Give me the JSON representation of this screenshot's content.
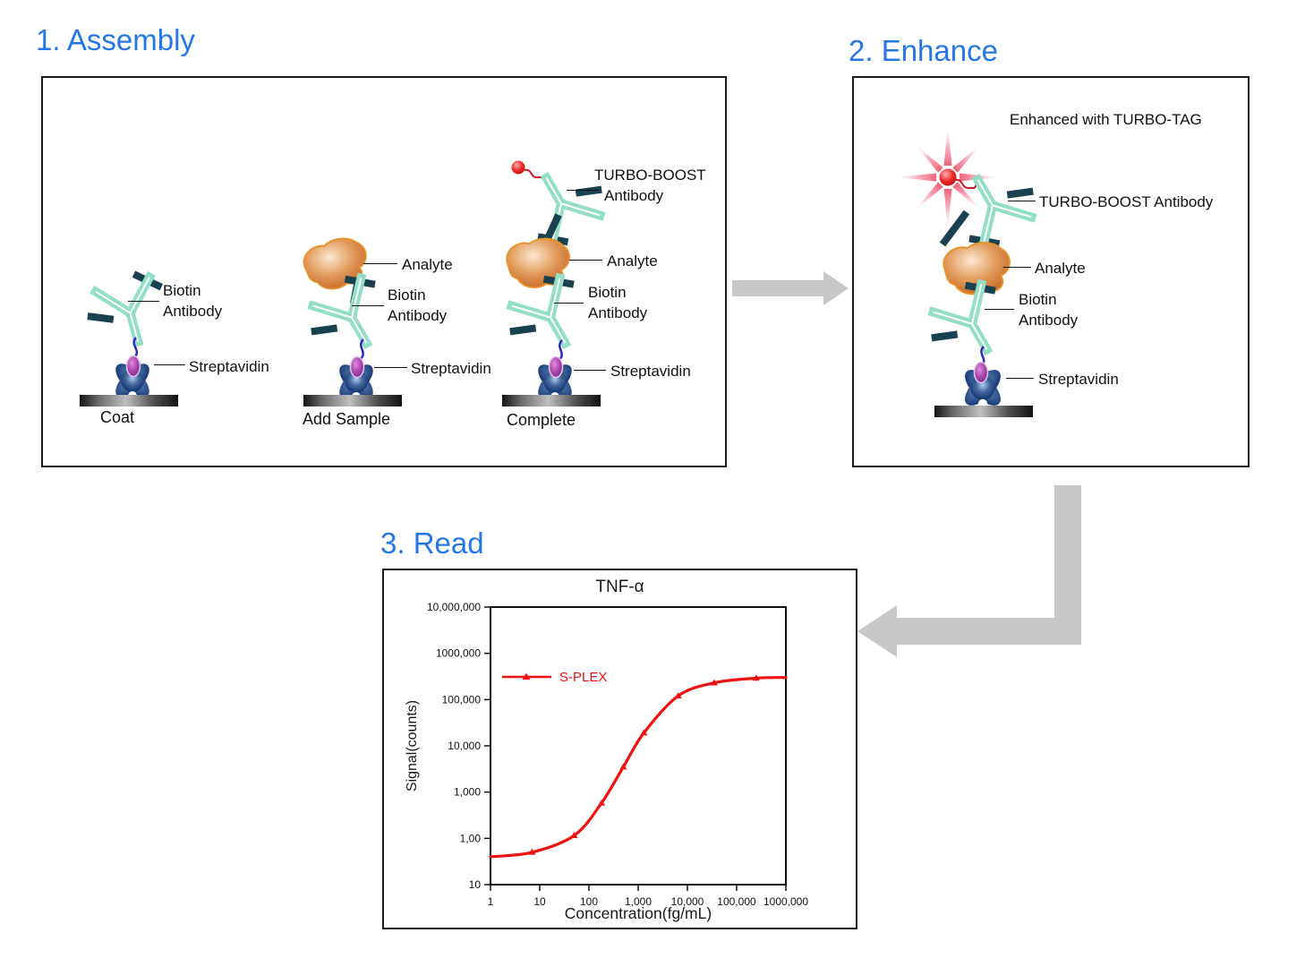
{
  "titles": {
    "assembly": "1. Assembly",
    "enhance": "2. Enhance",
    "read": "3. Read"
  },
  "labels": {
    "biotin": "Biotin",
    "antibody": "Antibody",
    "streptavidin": "Streptavidin",
    "analyte": "Analyte",
    "turbo_boost": "TURBO-BOOST",
    "turbo_boost_antibody": "TURBO-BOOST Antibody",
    "enhanced_with_turbo_tag": "Enhanced with TURBO-TAG"
  },
  "stages": {
    "coat": "Coat",
    "add_sample": "Add Sample",
    "complete": "Complete"
  },
  "colors": {
    "accent_blue": "#2577E8",
    "series_red": "#EE1111",
    "arrow_gray": "#C8C8C8",
    "antibody_teal": "#92DEC7",
    "fragment_dark": "#1A4150",
    "streptavidin_blue": "#1B3F7C",
    "biotin_purple": "#A844AC",
    "analyte_orange": "#CE7534",
    "tag_red": "#EE2A2A"
  },
  "icons": {
    "biotin-antibody-icon": "Y-shaped teal antibody",
    "turbo-boost-antibody-icon": "inverted teal antibody with red tag",
    "analyte-icon": "orange blob protein",
    "streptavidin-icon": "blue four-lobed protein",
    "biotin-icon": "purple oval",
    "linker-icon": "blue squiggle",
    "plate-icon": "gray plate bar",
    "turbo-tag-icon": "red ball",
    "starburst-icon": "red emission rays",
    "flow-arrow-icon": "gray flow arrow"
  },
  "chart_data": {
    "type": "line",
    "title": "TNF-α",
    "xlabel": "Concentration(fg/mL)",
    "ylabel": "Signal(counts)",
    "x_scale": "log",
    "y_scale": "log",
    "xlim": [
      1,
      1000000
    ],
    "ylim": [
      10,
      10000000
    ],
    "xtick_labels": [
      "1",
      "10",
      "100",
      "1,000",
      "10,000",
      "100,000",
      "1000,000"
    ],
    "ytick_labels": [
      "10",
      "1,00",
      "1,000",
      "10,000",
      "100,000",
      "1000,000",
      "10,000,000"
    ],
    "grid": false,
    "legend": {
      "label": "S-PLEX",
      "position": "top-left-inside"
    },
    "series": [
      {
        "name": "S-PLEX",
        "color": "#EE1111",
        "marker": "triangle",
        "anchor_points": [
          [
            1,
            40
          ],
          [
            7,
            50
          ],
          [
            50,
            115
          ],
          [
            180,
            580
          ],
          [
            500,
            3500
          ],
          [
            1300,
            19000
          ],
          [
            6500,
            120000
          ],
          [
            35000,
            230000
          ],
          [
            250000,
            290000
          ],
          [
            1000000,
            300000
          ]
        ],
        "marker_points": [
          [
            7,
            50
          ],
          [
            50,
            115
          ],
          [
            180,
            580
          ],
          [
            500,
            3500
          ],
          [
            1300,
            19000
          ],
          [
            6500,
            120000
          ],
          [
            35000,
            230000
          ],
          [
            250000,
            290000
          ]
        ]
      }
    ]
  }
}
